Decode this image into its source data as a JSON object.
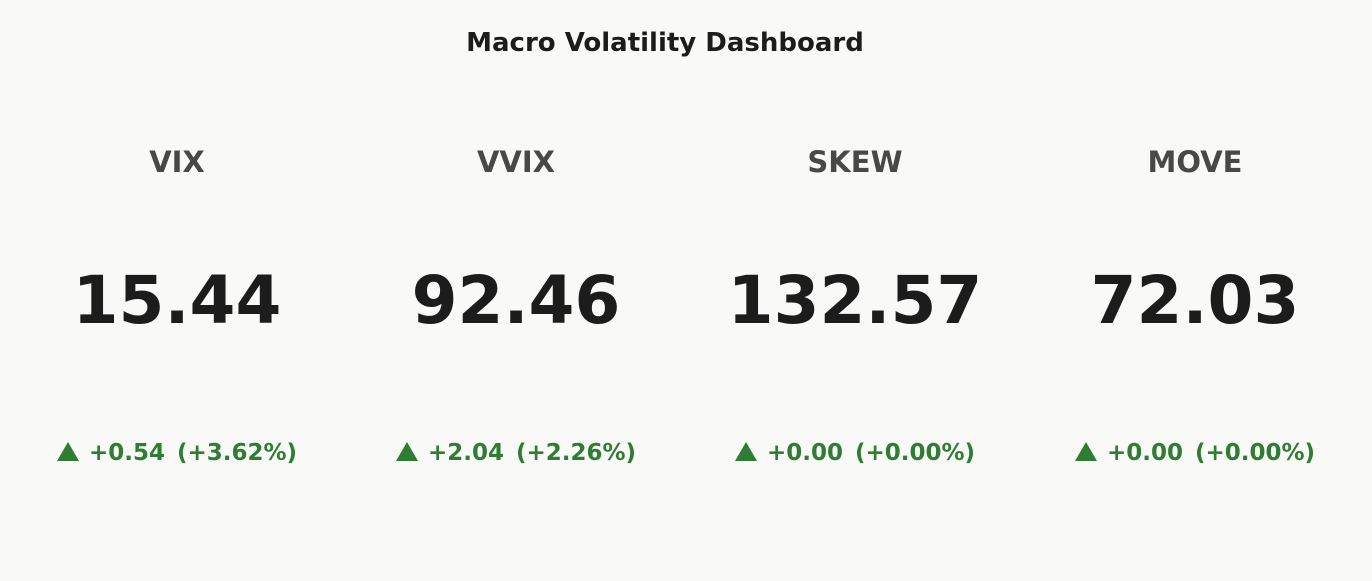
{
  "dashboard": {
    "title": "Macro Volatility Dashboard"
  },
  "colors": {
    "background": "#f9f9f7",
    "title": "#1c1c1c",
    "label": "#484848",
    "value": "#1c1c1c",
    "positive": "#2e7d32"
  },
  "cards": [
    {
      "label": "VIX",
      "value": "15.44",
      "change": "+0.54",
      "change_pct": "(+3.62%)",
      "direction_icon": "triangle-up-icon"
    },
    {
      "label": "VVIX",
      "value": "92.46",
      "change": "+2.04",
      "change_pct": "(+2.26%)",
      "direction_icon": "triangle-up-icon"
    },
    {
      "label": "SKEW",
      "value": "132.57",
      "change": "+0.00",
      "change_pct": "(+0.00%)",
      "direction_icon": "triangle-up-icon"
    },
    {
      "label": "MOVE",
      "value": "72.03",
      "change": "+0.00",
      "change_pct": "(+0.00%)",
      "direction_icon": "triangle-up-icon"
    }
  ]
}
